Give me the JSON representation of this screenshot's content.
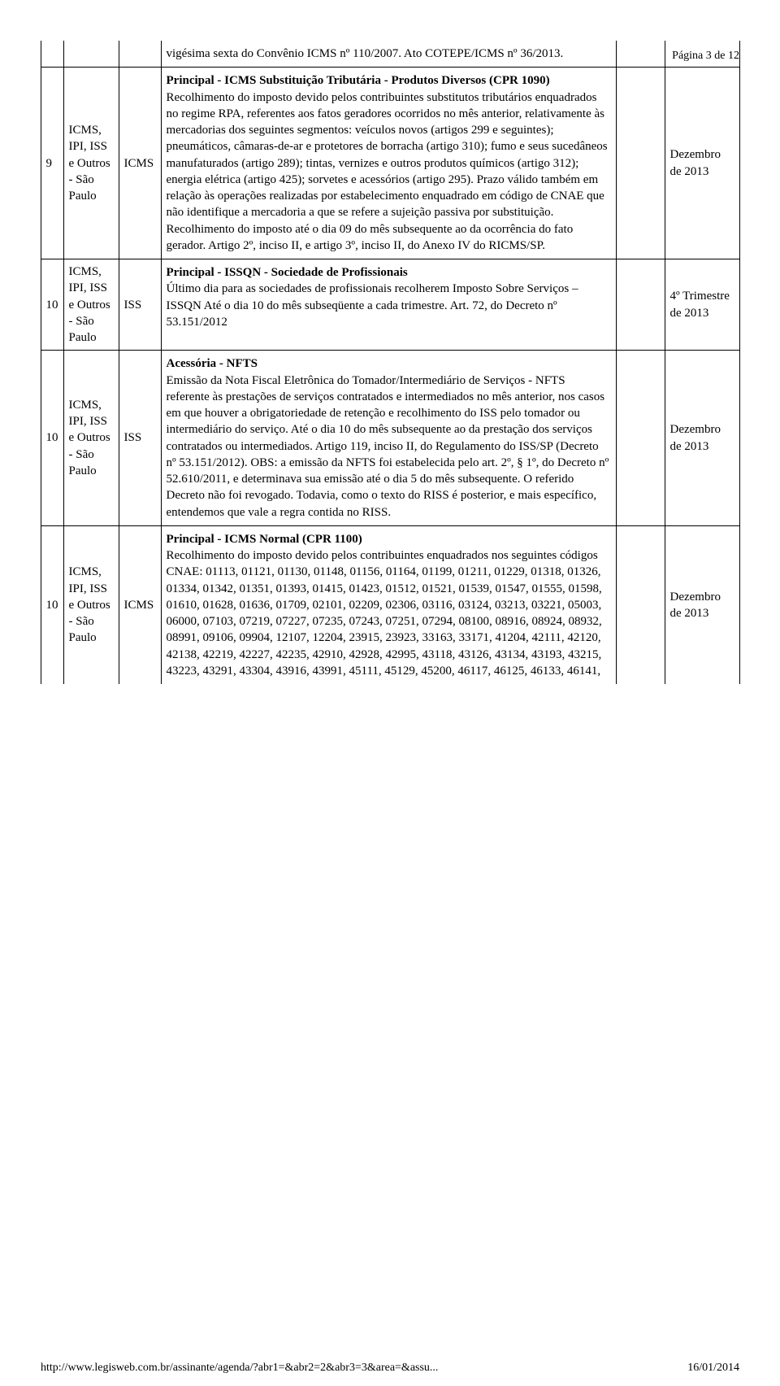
{
  "header": {
    "page_label": "Página 3 de 12"
  },
  "table": {
    "columns": {
      "c1_width": 28,
      "c2_width": 68,
      "c3_width": 52,
      "c4_width": 560,
      "c5_width": 60,
      "c6_width": 92
    },
    "rows": [
      {
        "day": "",
        "scope": "",
        "tax": "",
        "header_text": "vigésima sexta do Convênio ICMS nº 110/2007. Ato COTEPE/ICMS nº 36/2013.",
        "desc_bold": "",
        "desc_body": "",
        "blank": "",
        "period": "",
        "top_continuation": true
      },
      {
        "day": "9",
        "scope": "ICMS, IPI, ISS e Outros - São Paulo",
        "tax": "ICMS",
        "header_text": "",
        "desc_bold": "Principal - ICMS Substituição Tributária - Produtos Diversos (CPR 1090)",
        "desc_body": "Recolhimento do imposto devido pelos contribuintes substitutos tributários enquadrados no regime RPA, referentes aos fatos geradores ocorridos no mês anterior, relativamente às mercadorias dos seguintes segmentos: veículos novos (artigos 299 e seguintes); pneumáticos, câmaras-de-ar e protetores de borracha (artigo 310); fumo e seus sucedâneos manufaturados (artigo 289); tintas, vernizes e outros produtos químicos (artigo 312); energia elétrica (artigo 425); sorvetes e acessórios (artigo 295). Prazo válido também em relação às operações realizadas por estabelecimento enquadrado em código de CNAE que não identifique a mercadoria a que se refere a sujeição passiva por substituição. Recolhimento do imposto até o dia 09 do mês subsequente ao da ocorrência do fato gerador. Artigo 2º, inciso II, e artigo 3º, inciso II, do Anexo IV do RICMS/SP.",
        "blank": "",
        "period": "Dezembro de 2013",
        "top_continuation": false
      },
      {
        "day": "10",
        "scope": "ICMS, IPI, ISS e Outros - São Paulo",
        "tax": "ISS",
        "header_text": "",
        "desc_bold": "Principal - ISSQN - Sociedade de Profissionais",
        "desc_body": "Último dia para as sociedades de profissionais recolherem Imposto Sobre Serviços – ISSQN Até o dia 10 do mês subseqüente a cada trimestre. Art. 72, do Decreto nº 53.151/2012",
        "blank": "",
        "period": "4º Trimestre de 2013",
        "top_continuation": false
      },
      {
        "day": "10",
        "scope": "ICMS, IPI, ISS e Outros - São Paulo",
        "tax": "ISS",
        "header_text": "",
        "desc_bold": "Acessória - NFTS",
        "desc_body": "Emissão da Nota Fiscal Eletrônica do Tomador/Intermediário de Serviços - NFTS referente às prestações de serviços contratados e intermediados no mês anterior, nos casos em que houver a obrigatoriedade de retenção e recolhimento do ISS pelo tomador ou intermediário do serviço. Até o dia 10 do mês subsequente ao da prestação dos serviços contratados ou intermediados. Artigo 119, inciso II, do Regulamento do ISS/SP (Decreto nº 53.151/2012). OBS: a emissão da NFTS foi estabelecida pelo art. 2º, § 1º, do Decreto nº 52.610/2011, e determinava sua emissão até o dia 5 do mês subsequente. O referido Decreto não foi revogado. Todavia, como o texto do RISS é posterior, e mais específico, entendemos que vale a regra contida no RISS.",
        "blank": "",
        "period": "Dezembro de 2013",
        "top_continuation": false
      },
      {
        "day": "10",
        "scope": "ICMS, IPI, ISS e Outros - São Paulo",
        "tax": "ICMS",
        "header_text": "",
        "desc_bold": "Principal - ICMS Normal (CPR 1100)",
        "desc_body": "Recolhimento do imposto devido pelos contribuintes enquadrados nos seguintes códigos CNAE: 01113, 01121, 01130, 01148, 01156, 01164, 01199, 01211, 01229, 01318, 01326, 01334, 01342, 01351, 01393, 01415, 01423, 01512, 01521, 01539, 01547, 01555, 01598, 01610, 01628, 01636, 01709, 02101, 02209, 02306, 03116, 03124, 03213, 03221, 05003, 06000, 07103, 07219, 07227, 07235, 07243, 07251, 07294, 08100, 08916, 08924, 08932, 08991, 09106, 09904, 12107, 12204, 23915, 23923, 33163, 33171, 41204, 42111, 42120, 42138, 42219, 42227, 42235, 42910, 42928, 42995, 43118, 43126, 43134, 43193, 43215, 43223, 43291, 43304, 43916, 43991, 45111, 45129, 45200, 46117, 46125, 46133, 46141,",
        "blank": "",
        "period": "Dezembro de 2013",
        "top_continuation": false,
        "bottom_continuation": true
      }
    ]
  },
  "footer": {
    "url": "http://www.legisweb.com.br/assinante/agenda/?abr1=&abr2=2&abr3=3&area=&assu...",
    "date": "16/01/2014"
  }
}
